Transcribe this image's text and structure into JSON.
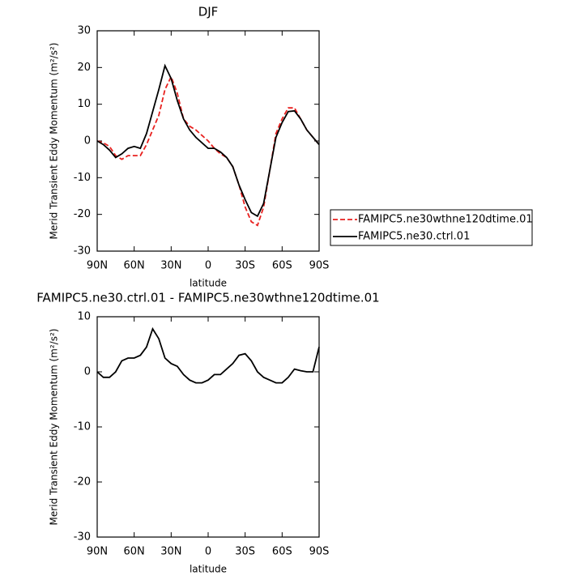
{
  "chart_data": [
    {
      "type": "line",
      "title": "DJF",
      "xlabel": "latitude",
      "ylabel": "Merid Transient Eddy Momentum (m²/s²)",
      "x": [
        90,
        85,
        80,
        75,
        70,
        65,
        60,
        55,
        50,
        45,
        40,
        35,
        30,
        25,
        20,
        15,
        10,
        5,
        0,
        -5,
        -10,
        -15,
        -20,
        -25,
        -30,
        -35,
        -40,
        -45,
        -50,
        -55,
        -60,
        -65,
        -70,
        -75,
        -80,
        -85,
        -90
      ],
      "xlim": [
        90,
        -90
      ],
      "xticks": [
        {
          "value": 90,
          "label": "90N"
        },
        {
          "value": 60,
          "label": "60N"
        },
        {
          "value": 30,
          "label": "30N"
        },
        0,
        {
          "value": -30,
          "label": "30S"
        },
        {
          "value": -60,
          "label": "60S"
        },
        {
          "value": -90,
          "label": "90S"
        }
      ],
      "ylim": [
        -30,
        30
      ],
      "yticks": [
        -30,
        -20,
        -10,
        0,
        10,
        20,
        30
      ],
      "legend": "right",
      "series": [
        {
          "name": "FAMIPC5.ne30wthne120dtime.01",
          "color": "#e8211f",
          "dash": true,
          "values": [
            0,
            -0.5,
            -1.5,
            -4,
            -5,
            -4,
            -4,
            -4,
            -1,
            3,
            7,
            14,
            17.5,
            13,
            6,
            4,
            3,
            1.5,
            0,
            -2,
            -3.5,
            -4.5,
            -7,
            -12,
            -18,
            -22,
            -23,
            -18,
            -8,
            2,
            6,
            9,
            9,
            6,
            3,
            1,
            -1
          ]
        },
        {
          "name": "FAMIPC5.ne30.ctrl.01",
          "color": "#000000",
          "dash": false,
          "values": [
            0,
            -1,
            -2.5,
            -4.5,
            -3.5,
            -2,
            -1.5,
            -2,
            2,
            8,
            14,
            20.5,
            17,
            11,
            6,
            3,
            1,
            -0.5,
            -2,
            -2,
            -3,
            -4.5,
            -7,
            -12,
            -16,
            -19.5,
            -20.5,
            -17,
            -8,
            1,
            5,
            8,
            8.2,
            6,
            3,
            1,
            -1
          ]
        }
      ]
    },
    {
      "type": "line",
      "title": "FAMIPC5.ne30.ctrl.01 - FAMIPC5.ne30wthne120dtime.01",
      "xlabel": "latitude",
      "ylabel": "Merid Transient Eddy Momentum (m²/s²)",
      "x": [
        90,
        85,
        80,
        75,
        70,
        65,
        60,
        55,
        50,
        45,
        40,
        35,
        30,
        25,
        20,
        15,
        10,
        5,
        0,
        -5,
        -10,
        -15,
        -20,
        -25,
        -30,
        -35,
        -40,
        -45,
        -50,
        -55,
        -60,
        -65,
        -70,
        -75,
        -80,
        -85,
        -90
      ],
      "xlim": [
        90,
        -90
      ],
      "xticks": [
        {
          "value": 90,
          "label": "90N"
        },
        {
          "value": 60,
          "label": "60N"
        },
        {
          "value": 30,
          "label": "30N"
        },
        0,
        {
          "value": -30,
          "label": "30S"
        },
        {
          "value": -60,
          "label": "60S"
        },
        {
          "value": -90,
          "label": "90S"
        }
      ],
      "ylim": [
        -30,
        10
      ],
      "yticks": [
        -30,
        -20,
        -10,
        0,
        10
      ],
      "series": [
        {
          "color": "#000000",
          "dash": false,
          "values": [
            0,
            -1,
            -1,
            0,
            2,
            2.5,
            2.5,
            3,
            4.5,
            7.8,
            6,
            2.5,
            1.5,
            1,
            -0.5,
            -1.5,
            -2,
            -2,
            -1.5,
            -0.5,
            -0.5,
            0.5,
            1.5,
            3,
            3.3,
            2,
            0,
            -1,
            -1.5,
            -2,
            -2,
            -1,
            0.5,
            0.2,
            0,
            0,
            4.5
          ]
        }
      ]
    }
  ]
}
